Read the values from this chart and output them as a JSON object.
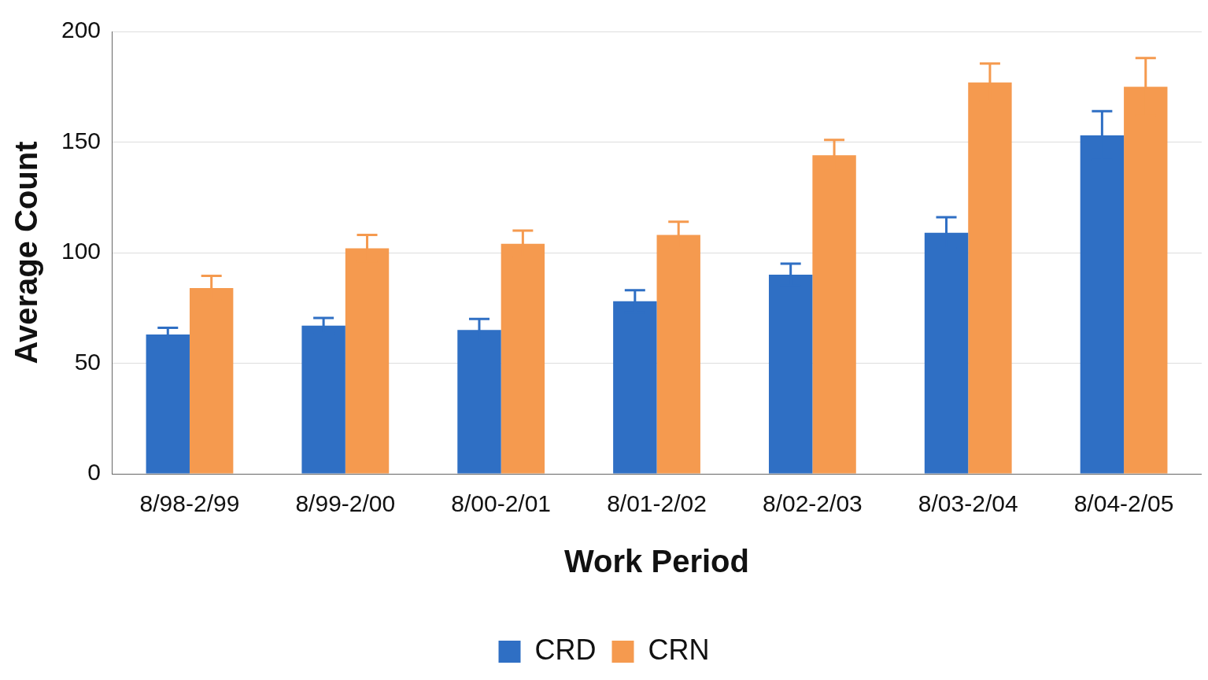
{
  "chart_data": {
    "type": "bar",
    "xlabel": "Work Period",
    "ylabel": "Average Count",
    "categories": [
      "8/98-2/99",
      "8/99-2/00",
      "8/00-2/01",
      "8/01-2/02",
      "8/02-2/03",
      "8/03-2/04",
      "8/04-2/05"
    ],
    "series": [
      {
        "name": "CRD",
        "color": "#2f6fc4",
        "values": [
          63,
          67,
          65,
          78,
          90,
          109,
          153
        ],
        "errors": [
          3,
          3.5,
          5,
          5,
          5,
          7,
          11
        ]
      },
      {
        "name": "CRN",
        "color": "#f59a4f",
        "values": [
          84,
          102,
          104,
          108,
          144,
          177,
          175
        ],
        "errors": [
          5.5,
          6,
          6,
          6,
          7,
          8.5,
          13
        ]
      }
    ],
    "ylim": [
      0,
      200
    ],
    "yticks": [
      0,
      50,
      100,
      150,
      200
    ],
    "grid": "y",
    "legend": "bottom"
  }
}
